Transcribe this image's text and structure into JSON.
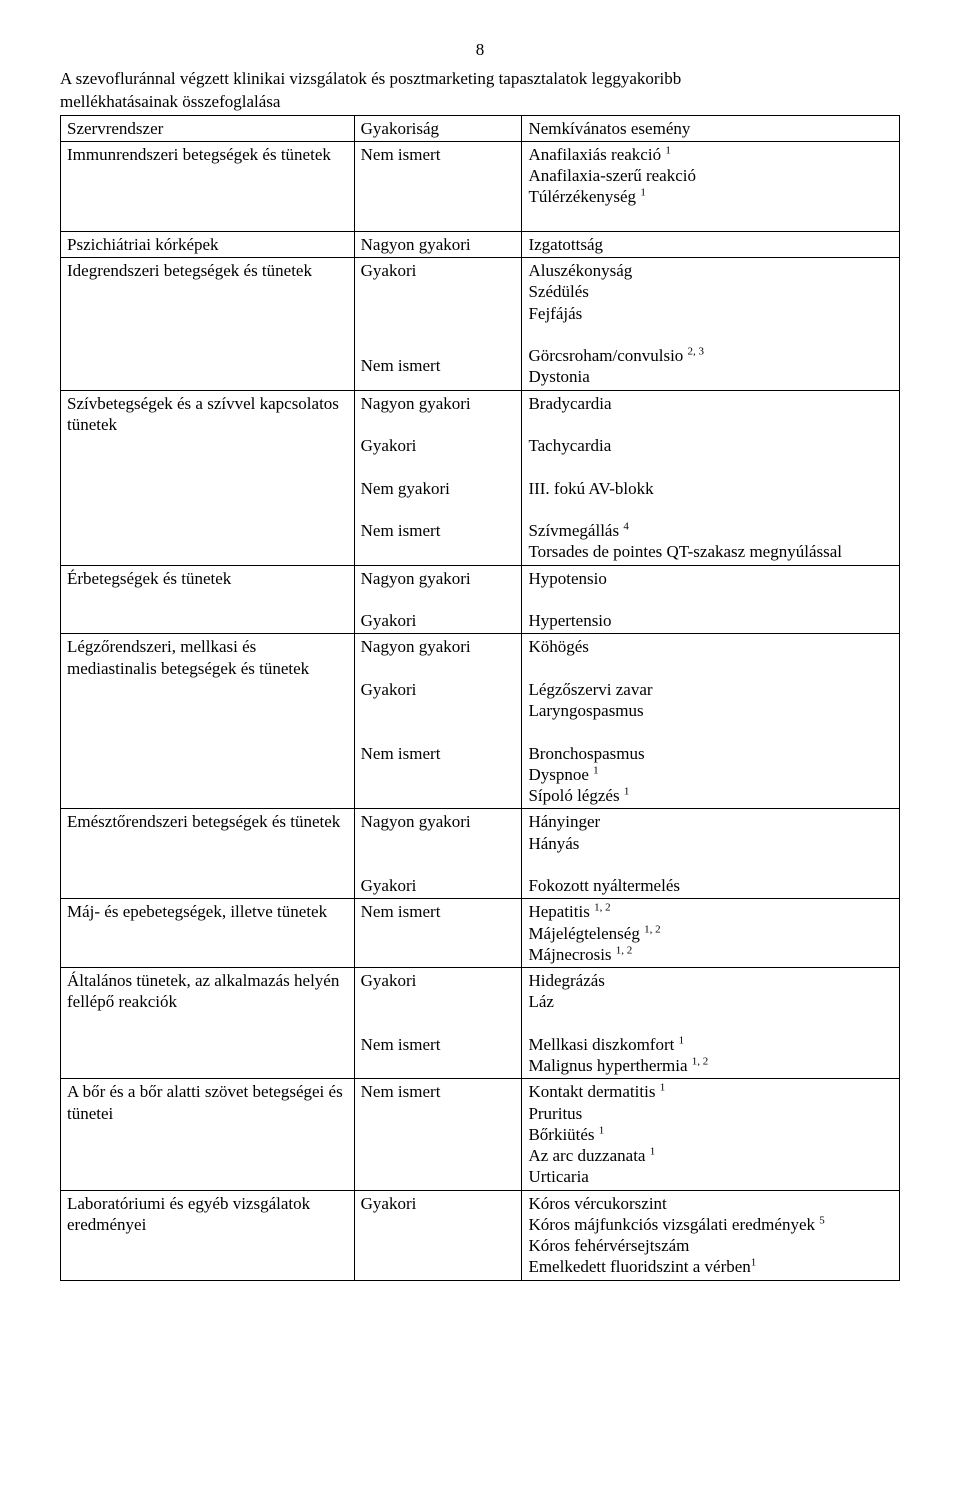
{
  "page_number": "8",
  "intro_line1": "A szevofluránnal végzett klinikai vizsgálatok és posztmarketing tapasztalatok leggyakoribb",
  "intro_line2": "mellékhatásainak összefoglalása",
  "header": {
    "c1": "Szervrendszer",
    "c2": "Gyakoriság",
    "c3": "Nemkívánatos esemény"
  },
  "rows": {
    "r1": {
      "c1": "Immunrendszeri betegségek és tünetek",
      "c2": "Nem ismert",
      "c3_l1a": "Anafilaxiás reakció ",
      "c3_l1b": "1",
      "c3_l2": "Anafilaxia-szerű reakció",
      "c3_l3a": "Túlérzékenység ",
      "c3_l3b": "1"
    },
    "r2": {
      "c1": "Pszichiátriai kórképek",
      "c2": "Nagyon gyakori",
      "c3": "Izgatottság"
    },
    "r3": {
      "c1": "Idegrendszeri betegségek és tünetek",
      "b1_c2": "Gyakori",
      "b1_c3_l1": "Aluszékonyság",
      "b1_c3_l2": "Szédülés",
      "b1_c3_l3": "Fejfájás",
      "b2_c2": "Nem ismert",
      "b2_c3_l1a": "Görcsroham/convulsio ",
      "b2_c3_l1b": "2, 3",
      "b2_c3_l2": "Dystonia"
    },
    "r4": {
      "c1": "Szívbetegségek és a szívvel kapcsolatos tünetek",
      "b1_c2": "Nagyon gyakori",
      "b1_c3": "Bradycardia",
      "b2_c2": "Gyakori",
      "b2_c3": "Tachycardia",
      "b3_c2": "Nem gyakori",
      "b3_c3": "III. fokú AV-blokk",
      "b4_c2": "Nem ismert",
      "b4_c3_l1a": "Szívmegállás ",
      "b4_c3_l1b": "4",
      "b4_c3_l2": "Torsades de pointes QT-szakasz megnyúlással"
    },
    "r5": {
      "c1": "Érbetegségek és tünetek",
      "b1_c2": "Nagyon gyakori",
      "b1_c3": "Hypotensio",
      "b2_c2": "Gyakori",
      "b2_c3": "Hypertensio"
    },
    "r6": {
      "c1": "Légzőrendszeri, mellkasi és mediastinalis betegségek és tünetek",
      "b1_c2": "Nagyon gyakori",
      "b1_c3": "Köhögés",
      "b2_c2": "Gyakori",
      "b2_c3_l1": "Légzőszervi zavar",
      "b2_c3_l2": "Laryngospasmus",
      "b3_c2": "Nem ismert",
      "b3_c3_l1": "Bronchospasmus",
      "b3_c3_l2a": "Dyspnoe ",
      "b3_c3_l2b": "1",
      "b3_c3_l3a": "Sípoló légzés ",
      "b3_c3_l3b": "1"
    },
    "r7": {
      "c1": "Emésztőrendszeri betegségek és tünetek",
      "b1_c2": "Nagyon gyakori",
      "b1_c3_l1": "Hányinger",
      "b1_c3_l2": "Hányás",
      "b2_c2": "Gyakori",
      "b2_c3": "Fokozott nyáltermelés"
    },
    "r8": {
      "c1": "Máj- és epebetegségek, illetve tünetek",
      "c2": "Nem ismert",
      "c3_l1a": "Hepatitis ",
      "c3_l1b": "1, 2",
      "c3_l2a": "Májelégtelenség ",
      "c3_l2b": "1, 2",
      "c3_l3a": "Májnecrosis ",
      "c3_l3b": "1, 2"
    },
    "r9": {
      "c1": "Általános tünetek, az alkalmazás helyén fellépő reakciók",
      "b1_c2": "Gyakori",
      "b1_c3_l1": "Hidegrázás",
      "b1_c3_l2": "Láz",
      "b2_c2": "Nem ismert",
      "b2_c3_l1a": "Mellkasi diszkomfort ",
      "b2_c3_l1b": "1",
      "b2_c3_l2a": "Malignus hyperthermia ",
      "b2_c3_l2b": "1, 2"
    },
    "r10": {
      "c1": "A bőr és a bőr alatti szövet betegségei és tünetei",
      "c2": "Nem ismert",
      "c3_l1a": "Kontakt dermatitis ",
      "c3_l1b": "1",
      "c3_l2": "Pruritus",
      "c3_l3a": "Bőrkiütés ",
      "c3_l3b": "1",
      "c3_l4a": "Az arc duzzanata ",
      "c3_l4b": "1",
      "c3_l5": "Urticaria"
    },
    "r11": {
      "c1": "Laboratóriumi és egyéb vizsgálatok eredményei",
      "c2": "Gyakori",
      "c3_l1": "Kóros vércukorszint",
      "c3_l2a": "Kóros májfunkciós vizsgálati eredmények ",
      "c3_l2b": "5",
      "c3_l3": "Kóros fehérvérsejtszám",
      "c3_l4a": "Emelkedett fluoridszint a vérben",
      "c3_l4b": "1"
    }
  }
}
